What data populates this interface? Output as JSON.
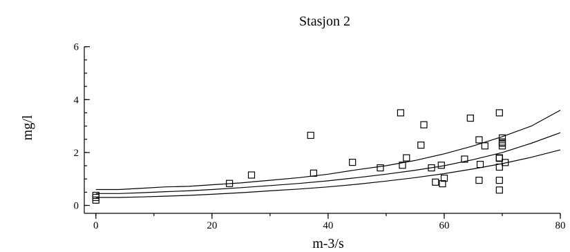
{
  "chart_data": {
    "type": "scatter",
    "title": "Stasjon 2",
    "xlabel": "m-3/s",
    "ylabel": "mg/l",
    "xlim": [
      -2,
      80
    ],
    "ylim": [
      -0.3,
      6.2
    ],
    "xticks": [
      0,
      20,
      40,
      60,
      80
    ],
    "yticks": [
      0,
      2,
      4,
      6
    ],
    "y_minor_step": 0.5,
    "x_minor_step": 10,
    "points": [
      [
        0,
        0.38
      ],
      [
        0,
        0.3
      ],
      [
        0,
        0.2
      ],
      [
        23,
        0.83
      ],
      [
        26.8,
        1.15
      ],
      [
        37,
        2.65
      ],
      [
        37.5,
        1.22
      ],
      [
        44.2,
        1.63
      ],
      [
        49,
        1.42
      ],
      [
        52.5,
        3.5
      ],
      [
        52.8,
        1.52
      ],
      [
        53.5,
        1.8
      ],
      [
        56,
        2.28
      ],
      [
        56.5,
        3.05
      ],
      [
        57.8,
        1.42
      ],
      [
        58.5,
        0.88
      ],
      [
        59.5,
        1.52
      ],
      [
        59.7,
        0.82
      ],
      [
        60,
        1.03
      ],
      [
        63.5,
        1.75
      ],
      [
        64.5,
        3.3
      ],
      [
        66,
        2.48
      ],
      [
        66.2,
        1.55
      ],
      [
        66,
        0.95
      ],
      [
        67,
        2.25
      ],
      [
        69.5,
        3.5
      ],
      [
        69.5,
        1.8
      ],
      [
        69.5,
        1.78
      ],
      [
        69.5,
        1.45
      ],
      [
        69.5,
        0.95
      ],
      [
        69.5,
        0.58
      ],
      [
        70,
        2.55
      ],
      [
        70,
        2.4
      ],
      [
        70,
        2.35
      ],
      [
        70,
        2.25
      ],
      [
        70.5,
        1.62
      ]
    ],
    "lines": [
      {
        "x": [
          0,
          4,
          8,
          12,
          16,
          20,
          25,
          30,
          35,
          40,
          45,
          50,
          55,
          60,
          65,
          70,
          75,
          80
        ],
        "y": [
          0.6,
          0.6,
          0.65,
          0.7,
          0.72,
          0.78,
          0.85,
          0.95,
          1.05,
          1.18,
          1.35,
          1.5,
          1.7,
          1.95,
          2.25,
          2.6,
          3.0,
          3.6
        ]
      },
      {
        "x": [
          0,
          4,
          8,
          12,
          16,
          20,
          25,
          30,
          35,
          40,
          45,
          50,
          55,
          60,
          65,
          70,
          75,
          80
        ],
        "y": [
          0.45,
          0.45,
          0.48,
          0.52,
          0.55,
          0.6,
          0.67,
          0.75,
          0.83,
          0.93,
          1.05,
          1.18,
          1.33,
          1.5,
          1.73,
          2.0,
          2.35,
          2.75
        ]
      },
      {
        "x": [
          0,
          4,
          8,
          12,
          16,
          20,
          25,
          30,
          35,
          40,
          45,
          50,
          55,
          60,
          65,
          70,
          75,
          80
        ],
        "y": [
          0.3,
          0.3,
          0.32,
          0.35,
          0.38,
          0.42,
          0.48,
          0.55,
          0.62,
          0.7,
          0.8,
          0.92,
          1.05,
          1.2,
          1.38,
          1.58,
          1.82,
          2.1
        ]
      }
    ]
  }
}
